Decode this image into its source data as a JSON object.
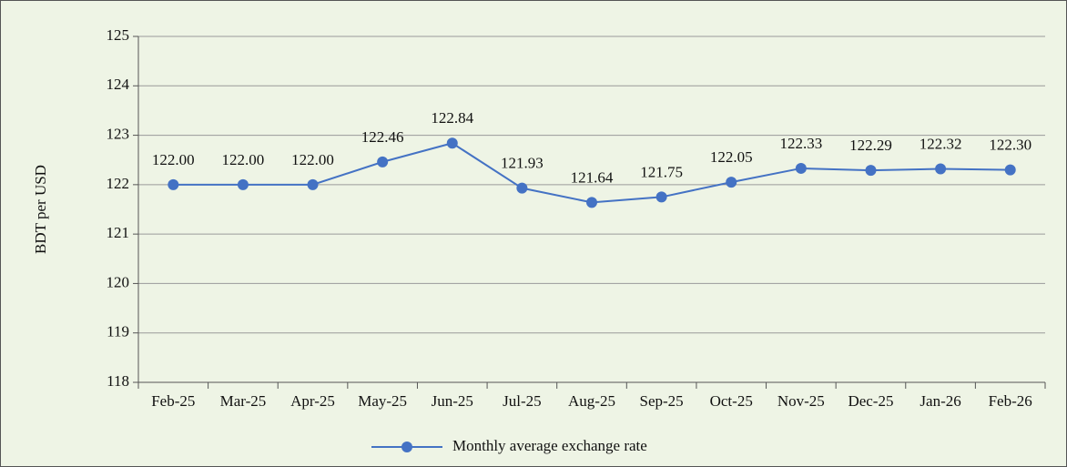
{
  "chart_data": {
    "type": "line",
    "y_label": "BDT per USD",
    "categories": [
      "Feb-25",
      "Mar-25",
      "Apr-25",
      "May-25",
      "Jun-25",
      "Jul-25",
      "Aug-25",
      "Sep-25",
      "Oct-25",
      "Nov-25",
      "Dec-25",
      "Jan-26",
      "Feb-26"
    ],
    "series": [
      {
        "name": "Monthly average exchange rate",
        "color": "#4472c4",
        "values": [
          122.0,
          122.0,
          122.0,
          122.46,
          122.84,
          121.93,
          121.64,
          121.75,
          122.05,
          122.33,
          122.29,
          122.32,
          122.3
        ],
        "value_labels": [
          "122.00",
          "122.00",
          "122.00",
          "122.46",
          "122.84",
          "121.93",
          "121.64",
          "121.75",
          "122.05",
          "122.33",
          "122.29",
          "122.32",
          "122.30"
        ]
      }
    ],
    "ylim": [
      118,
      125
    ],
    "yticks": [
      118,
      119,
      120,
      121,
      122,
      123,
      124,
      125
    ],
    "grid": true,
    "legend": "bottom"
  }
}
